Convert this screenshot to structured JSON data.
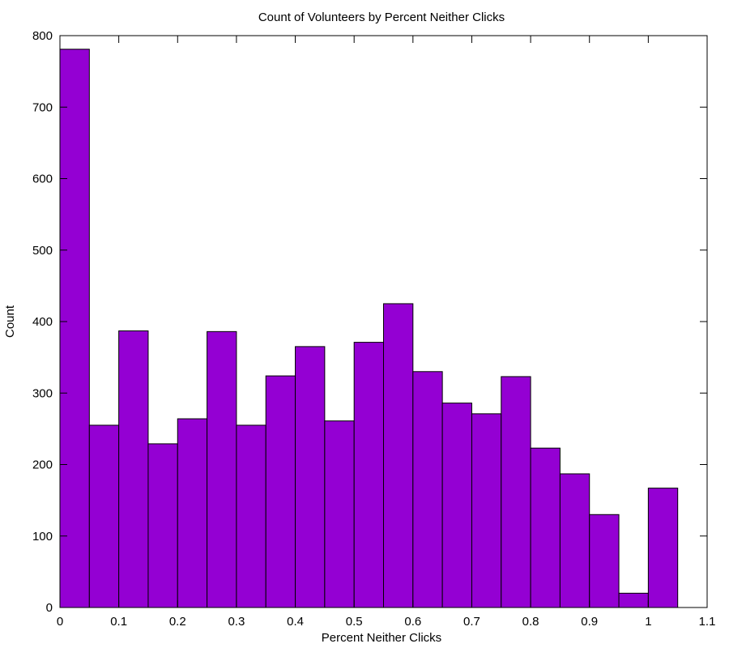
{
  "chart_data": {
    "type": "bar",
    "title": "Count of Volunteers by Percent Neither Clicks",
    "xlabel": "Percent Neither Clicks",
    "ylabel": "Count",
    "bin_width": 0.05,
    "bins": [
      {
        "x0": 0.0,
        "x1": 0.05,
        "value": 781
      },
      {
        "x0": 0.05,
        "x1": 0.1,
        "value": 255
      },
      {
        "x0": 0.1,
        "x1": 0.15,
        "value": 387
      },
      {
        "x0": 0.15,
        "x1": 0.2,
        "value": 229
      },
      {
        "x0": 0.2,
        "x1": 0.25,
        "value": 264
      },
      {
        "x0": 0.25,
        "x1": 0.3,
        "value": 386
      },
      {
        "x0": 0.3,
        "x1": 0.35,
        "value": 255
      },
      {
        "x0": 0.35,
        "x1": 0.4,
        "value": 324
      },
      {
        "x0": 0.4,
        "x1": 0.45,
        "value": 365
      },
      {
        "x0": 0.45,
        "x1": 0.5,
        "value": 261
      },
      {
        "x0": 0.5,
        "x1": 0.55,
        "value": 371
      },
      {
        "x0": 0.55,
        "x1": 0.6,
        "value": 425
      },
      {
        "x0": 0.6,
        "x1": 0.65,
        "value": 330
      },
      {
        "x0": 0.65,
        "x1": 0.7,
        "value": 286
      },
      {
        "x0": 0.7,
        "x1": 0.75,
        "value": 271
      },
      {
        "x0": 0.75,
        "x1": 0.8,
        "value": 323
      },
      {
        "x0": 0.8,
        "x1": 0.85,
        "value": 223
      },
      {
        "x0": 0.85,
        "x1": 0.9,
        "value": 187
      },
      {
        "x0": 0.9,
        "x1": 0.95,
        "value": 130
      },
      {
        "x0": 0.95,
        "x1": 1.0,
        "value": 20
      },
      {
        "x0": 1.0,
        "x1": 1.05,
        "value": 167
      }
    ],
    "xlim": [
      0,
      1.1
    ],
    "ylim": [
      0,
      800
    ],
    "xticks": [
      "0",
      "0.1",
      "0.2",
      "0.3",
      "0.4",
      "0.5",
      "0.6",
      "0.7",
      "0.8",
      "0.9",
      "1",
      "1.1"
    ],
    "yticks": [
      "0",
      "100",
      "200",
      "300",
      "400",
      "500",
      "600",
      "700",
      "800"
    ],
    "bar_color": "#9400d3",
    "bar_edge_color": "#000000",
    "grid": false,
    "legend": "none"
  }
}
